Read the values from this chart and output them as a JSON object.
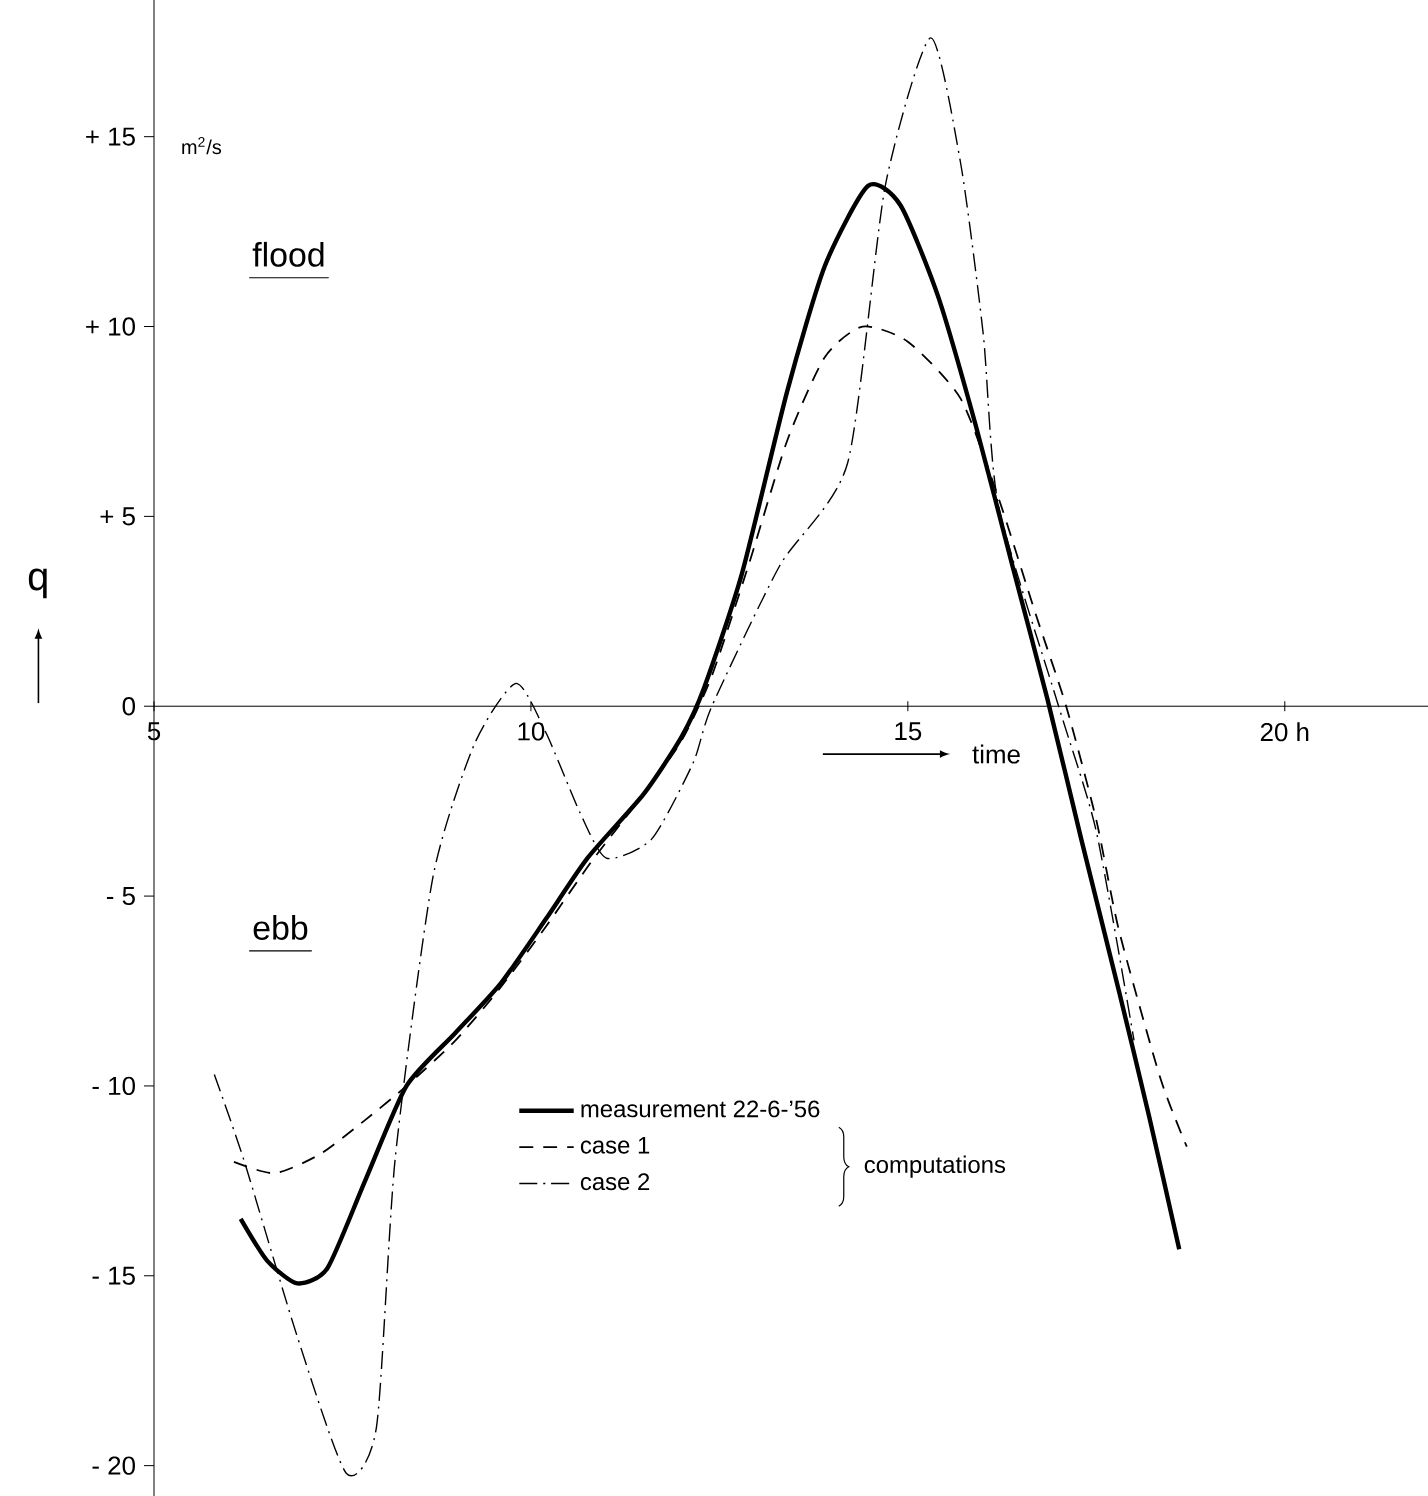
{
  "chart_data": {
    "type": "line",
    "xlabel": "time",
    "ylabel": "q",
    "annotations": [
      "m$^{2}$/s",
      "flood",
      "ebb",
      "computations"
    ],
    "xlim": [
      5,
      21.9
    ],
    "ylim": [
      -20.8,
      18.6
    ],
    "xticks": [
      5,
      10,
      15,
      {
        "value": 20,
        "label": "20 h"
      }
    ],
    "yticks": [
      {
        "value": -20,
        "label": "- 20"
      },
      {
        "value": -15,
        "label": "- 15"
      },
      {
        "value": -10,
        "label": "- 10"
      },
      {
        "value": -5,
        "label": "- 5"
      },
      0,
      {
        "value": 5,
        "label": "+ 5"
      },
      {
        "value": 10,
        "label": "+ 10"
      },
      {
        "value": 15,
        "label": "+ 15"
      }
    ],
    "grid": false,
    "legend": "bottom",
    "marker": "none",
    "series": [
      {
        "name": "measurement 22-6-’56",
        "color": "#000000",
        "line_style": "solid",
        "x": [
          6.15,
          6.5,
          6.9,
          7.3,
          7.8,
          8.35,
          9.0,
          9.6,
          10.2,
          10.75,
          11.5,
          12.0,
          12.3,
          12.8,
          13.4,
          13.9,
          14.47,
          14.9,
          15.4,
          15.9,
          16.4,
          16.85,
          17.3,
          17.8,
          18.2,
          18.6
        ],
        "values": [
          -13.5,
          -14.6,
          -15.2,
          -14.8,
          -12.5,
          -10.0,
          -8.6,
          -7.3,
          -5.6,
          -4.0,
          -2.3,
          -0.8,
          0.5,
          3.5,
          8.3,
          11.6,
          13.7,
          13.2,
          10.8,
          7.4,
          3.6,
          0.2,
          -3.5,
          -7.5,
          -10.8,
          -14.3
        ]
      },
      {
        "name": "case 1",
        "color": "#000000",
        "line_style": "dashed",
        "x": [
          6.06,
          6.6,
          7.2,
          7.8,
          8.35,
          9.0,
          9.6,
          10.2,
          10.8,
          11.5,
          12.0,
          12.4,
          12.9,
          13.4,
          13.9,
          14.4,
          15.0,
          15.7,
          16.2,
          16.7,
          17.1,
          17.5,
          17.8,
          18.35,
          18.7
        ],
        "values": [
          -12.0,
          -12.3,
          -11.8,
          -10.9,
          -10.0,
          -8.8,
          -7.4,
          -5.8,
          -4.1,
          -2.3,
          -0.9,
          0.8,
          3.8,
          7.0,
          9.2,
          10.0,
          9.6,
          8.1,
          5.5,
          2.4,
          0.0,
          -3.0,
          -5.9,
          -9.8,
          -11.6
        ]
      },
      {
        "name": "case 2",
        "color": "#000000",
        "line_style": "dashdot",
        "x": [
          5.8,
          6.2,
          6.9,
          7.55,
          7.95,
          8.2,
          8.7,
          9.25,
          9.8,
          10.2,
          10.65,
          11.0,
          11.6,
          12.15,
          12.4,
          13.3,
          14.2,
          14.7,
          15.3,
          15.7,
          16.0,
          16.2,
          17.0,
          17.5,
          18.0
        ],
        "values": [
          -9.7,
          -12.0,
          -16.6,
          -20.2,
          -19.0,
          -11.9,
          -4.5,
          -1.0,
          0.6,
          -0.7,
          -2.8,
          -4.0,
          -3.5,
          -1.5,
          0.0,
          3.7,
          6.4,
          13.7,
          17.6,
          14.3,
          9.8,
          5.3,
          0.0,
          -3.3,
          -8.8
        ]
      }
    ]
  }
}
